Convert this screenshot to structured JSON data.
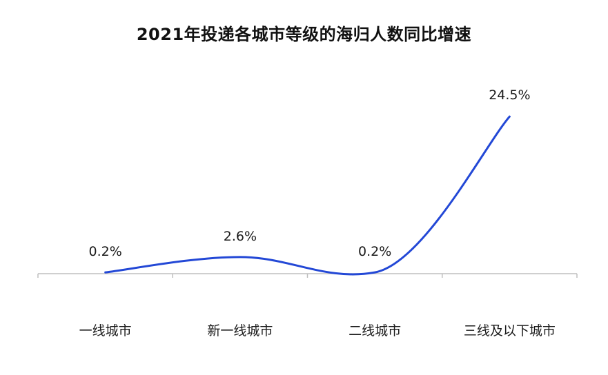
{
  "chart_data": {
    "type": "line",
    "title": "2021年投递各城市等级的海归人数同比增速",
    "categories": [
      "一线城市",
      "新一线城市",
      "二线城市",
      "三线及以下城市"
    ],
    "series": [
      {
        "values": [
          0.2,
          2.6,
          0.2,
          24.5
        ],
        "color": "#2348d6"
      }
    ],
    "data_labels": [
      "0.2%",
      "2.6%",
      "0.2%",
      "24.5%"
    ],
    "unit": "%",
    "smooth": true,
    "grid": false,
    "legend": "none"
  }
}
